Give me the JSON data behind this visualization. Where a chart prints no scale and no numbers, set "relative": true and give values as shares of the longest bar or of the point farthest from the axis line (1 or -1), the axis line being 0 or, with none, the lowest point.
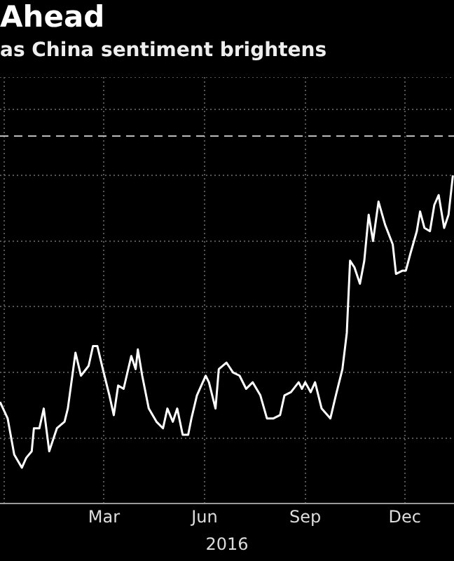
{
  "chart_data": {
    "type": "line",
    "title": "Ahead",
    "subtitle": "as China sentiment brightens",
    "xlabel": "2016",
    "relative": true,
    "grid": true,
    "legend": false,
    "marker": "none",
    "line_style": "solid",
    "xlim": [
      "2015-11-27",
      "2017-01-15"
    ],
    "xticks": [
      {
        "value": "2015-12-01",
        "label": null
      },
      {
        "value": "2016-03-01",
        "label": "Mar"
      },
      {
        "value": "2016-06-01",
        "label": "Jun"
      },
      {
        "value": "2016-09-01",
        "label": "Sep"
      },
      {
        "value": "2016-12-01",
        "label": "Dec"
      }
    ],
    "ref_lines": [
      {
        "axis": "y",
        "value": 1.12,
        "label": null,
        "color": "#bbbbbb",
        "line_style": "dashed"
      }
    ],
    "x": [
      "2015-11-27",
      "2015-12-04",
      "2015-12-10",
      "2015-12-17",
      "2015-12-21",
      "2015-12-26",
      "2015-12-28",
      "2016-01-02",
      "2016-01-06",
      "2016-01-11",
      "2016-01-18",
      "2016-01-25",
      "2016-01-28",
      "2016-02-04",
      "2016-02-09",
      "2016-02-16",
      "2016-02-20",
      "2016-02-24",
      "2016-02-29",
      "2016-03-06",
      "2016-03-10",
      "2016-03-14",
      "2016-03-19",
      "2016-03-26",
      "2016-03-30",
      "2016-04-01",
      "2016-04-05",
      "2016-04-11",
      "2016-04-18",
      "2016-04-24",
      "2016-04-28",
      "2016-05-03",
      "2016-05-07",
      "2016-05-12",
      "2016-05-17",
      "2016-05-20",
      "2016-05-25",
      "2016-06-02",
      "2016-06-05",
      "2016-06-11",
      "2016-06-14",
      "2016-06-21",
      "2016-06-27",
      "2016-07-03",
      "2016-07-09",
      "2016-07-15",
      "2016-07-22",
      "2016-07-28",
      "2016-08-03",
      "2016-08-09",
      "2016-08-13",
      "2016-08-19",
      "2016-08-26",
      "2016-08-29",
      "2016-09-01",
      "2016-09-06",
      "2016-09-10",
      "2016-09-16",
      "2016-09-24",
      "2016-09-29",
      "2016-10-05",
      "2016-10-09",
      "2016-10-12",
      "2016-10-16",
      "2016-10-21",
      "2016-10-25",
      "2016-10-29",
      "2016-11-02",
      "2016-11-07",
      "2016-11-13",
      "2016-11-20",
      "2016-11-23",
      "2016-11-29",
      "2016-12-02",
      "2016-12-06",
      "2016-12-12",
      "2016-12-15",
      "2016-12-19",
      "2016-12-24",
      "2016-12-28",
      "2017-01-01",
      "2017-01-06",
      "2017-01-10",
      "2017-01-14"
    ],
    "series": [
      {
        "color": "#ffffff",
        "values": [
          0.31,
          0.26,
          0.15,
          0.11,
          0.14,
          0.16,
          0.23,
          0.23,
          0.29,
          0.16,
          0.23,
          0.25,
          0.29,
          0.46,
          0.39,
          0.42,
          0.48,
          0.48,
          0.41,
          0.33,
          0.27,
          0.36,
          0.35,
          0.45,
          0.41,
          0.47,
          0.39,
          0.29,
          0.25,
          0.23,
          0.29,
          0.25,
          0.29,
          0.21,
          0.21,
          0.26,
          0.33,
          0.39,
          0.37,
          0.29,
          0.41,
          0.43,
          0.4,
          0.39,
          0.35,
          0.37,
          0.33,
          0.26,
          0.26,
          0.27,
          0.33,
          0.34,
          0.37,
          0.35,
          0.37,
          0.34,
          0.37,
          0.29,
          0.26,
          0.33,
          0.41,
          0.52,
          0.74,
          0.72,
          0.67,
          0.74,
          0.88,
          0.8,
          0.92,
          0.85,
          0.79,
          0.7,
          0.71,
          0.71,
          0.76,
          0.83,
          0.89,
          0.84,
          0.83,
          0.91,
          0.94,
          0.84,
          0.88,
          1
        ]
      }
    ]
  }
}
